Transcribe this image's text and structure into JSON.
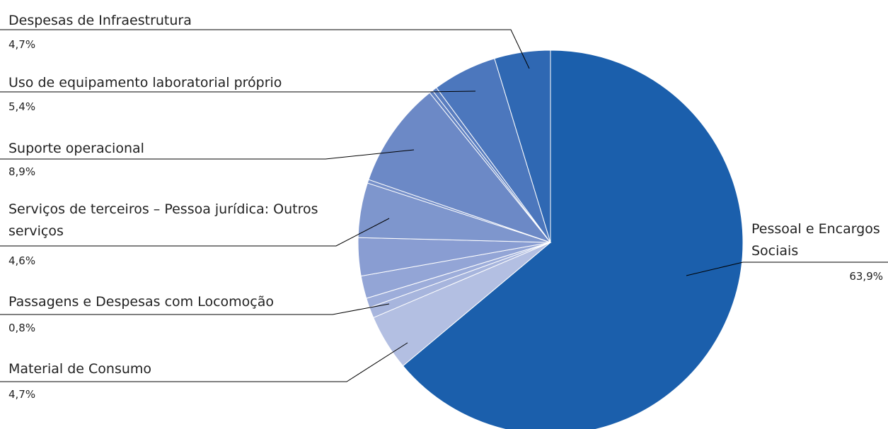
{
  "chart_data": {
    "type": "pie",
    "categories": [
      "Pessoal e Encargos Sociais",
      "Material de Consumo",
      null,
      "Passagens e Despesas com Locomoção",
      null,
      null,
      "Serviços de terceiros – Pessoa jurídica: Outros serviços",
      null,
      "Suporte operacional",
      null,
      null,
      "Uso de equipamento laboratorial próprio",
      "Despesas de Infraestrutura"
    ],
    "values": [
      63.9,
      4.7,
      0.9,
      0.8,
      1.9,
      3.2,
      4.6,
      0.3,
      8.9,
      0.3,
      0.4,
      5.4,
      4.7
    ],
    "value_labels": [
      "63,9%",
      "4,7%",
      null,
      "0,8%",
      null,
      null,
      "4,6%",
      null,
      "8,9%",
      null,
      null,
      "5,4%",
      "4,7%"
    ],
    "colors": [
      "#1b5fac",
      "#b3bfe2",
      "#a7b5dd",
      "#9dadda",
      "#93a5d6",
      "#899dd2",
      "#7e96cd",
      "#7791ca",
      "#6c89c6",
      "#6283c3",
      "#5a7ec0",
      "#4c77bd",
      "#2f68b3"
    ]
  }
}
